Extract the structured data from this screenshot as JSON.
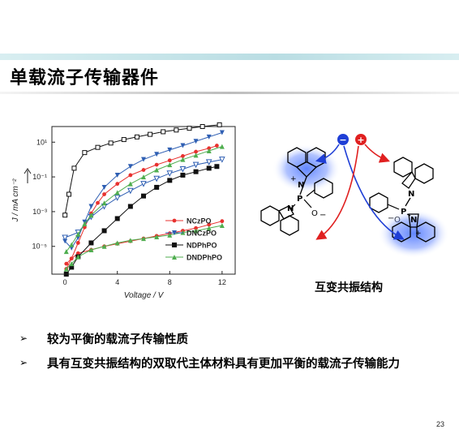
{
  "slide": {
    "title": "单载流子传输器件",
    "page_number": "23",
    "caption": "互变共振结构",
    "bullets": [
      "较为平衡的载流子传输性质",
      "具有互变共振结构的双取代主体材料具有更加平衡的载流子传输能力"
    ],
    "bullet_symbol": "➢"
  },
  "chemistry": {
    "atom_labels": [
      "N",
      "P",
      "O",
      "N",
      "P",
      "O",
      "N",
      "N"
    ],
    "charges": [
      "+",
      "−",
      "−",
      "+"
    ],
    "electron_symbol": "−",
    "hole_symbol": "+",
    "colors": {
      "electron": "#1f3fd6",
      "hole": "#e02020",
      "highlight": "#3f6bff"
    }
  },
  "chart_data": {
    "type": "line",
    "xlabel": "Voltage / V",
    "ylabel": "J / mA cm⁻²",
    "xlim": [
      -1,
      13
    ],
    "ylim": [
      -6.6,
      1.9
    ],
    "yscale": "log10",
    "x_ticks": [
      "0",
      "4",
      "8",
      "12"
    ],
    "y_ticks": [
      "10¹",
      "10⁻¹",
      "10⁻³",
      "10⁻⁵"
    ],
    "legend_position": "lower-right",
    "series": [
      {
        "name": "NCzPO",
        "color": "#e8312f",
        "marker": "circle",
        "curves": [
          {
            "x": [
              0.1,
              0.5,
              1.0,
              1.5,
              2.0,
              2.5,
              3.0,
              4.0,
              5.0,
              6.0,
              7.0,
              8.0,
              9.0,
              10.0,
              11.0,
              11.6
            ],
            "logy": [
              -6.3,
              -5.7,
              -4.8,
              -3.9,
              -3.1,
              -2.5,
              -2.0,
              -1.4,
              -0.9,
              -0.6,
              -0.3,
              -0.05,
              0.2,
              0.45,
              0.65,
              0.8
            ]
          },
          {
            "x": [
              0.1,
              0.5,
              1.0,
              2.0,
              3.0,
              4.0,
              5.0,
              6.0,
              7.0,
              8.0,
              9.0,
              10.0,
              11.0,
              12.0
            ],
            "logy": [
              -6.0,
              -5.7,
              -5.4,
              -5.2,
              -5.0,
              -4.85,
              -4.7,
              -4.55,
              -4.4,
              -4.25,
              -4.1,
              -3.95,
              -3.75,
              -3.55
            ]
          }
        ]
      },
      {
        "name": "DNCzPO",
        "color": "#2f5fb3",
        "marker": "triangle-down",
        "curves": [
          {
            "x": [
              0.0,
              0.5,
              1.0,
              1.5,
              2.0,
              3.0,
              4.0,
              5.0,
              6.0,
              7.0,
              8.0,
              9.0,
              10.0,
              11.0,
              12.0
            ],
            "logy": [
              -4.7,
              -5.1,
              -4.5,
              -3.6,
              -2.7,
              -1.6,
              -0.9,
              -0.4,
              0.0,
              0.3,
              0.55,
              0.8,
              1.05,
              1.3,
              1.55
            ]
          },
          {
            "x": [
              0.0,
              1.0,
              2.0,
              3.0,
              4.0,
              5.0,
              6.0,
              7.0,
              8.0,
              9.0,
              10.0,
              11.0,
              12.0
            ],
            "logy": [
              -4.5,
              -4.2,
              -3.3,
              -2.7,
              -2.2,
              -1.8,
              -1.4,
              -1.1,
              -0.8,
              -0.55,
              -0.3,
              -0.15,
              0.0
            ]
          }
        ]
      },
      {
        "name": "NDPhPO",
        "color": "#111111",
        "marker": "square",
        "curves": [
          {
            "x": [
              0.0,
              0.3,
              0.7,
              1.5,
              2.5,
              3.5,
              4.5,
              5.5,
              6.5,
              7.5,
              8.5,
              9.5,
              10.5,
              11.8
            ],
            "logy": [
              -3.2,
              -2.0,
              -0.5,
              0.4,
              0.7,
              0.95,
              1.15,
              1.3,
              1.45,
              1.6,
              1.7,
              1.8,
              1.9,
              2.0
            ]
          },
          {
            "x": [
              0.1,
              0.5,
              1.0,
              2.0,
              3.0,
              4.0,
              5.0,
              6.0,
              7.0,
              8.0,
              9.0,
              10.0,
              11.0,
              11.6
            ],
            "logy": [
              -6.6,
              -6.2,
              -5.6,
              -4.8,
              -4.1,
              -3.4,
              -2.7,
              -2.1,
              -1.6,
              -1.2,
              -0.9,
              -0.7,
              -0.5,
              -0.4
            ]
          }
        ]
      },
      {
        "name": "DNDPhPO",
        "color": "#4fae4f",
        "marker": "triangle-up",
        "curves": [
          {
            "x": [
              0.1,
              0.5,
              1.0,
              1.5,
              2.0,
              3.0,
              4.0,
              5.0,
              6.0,
              7.0,
              8.0,
              9.0,
              10.0,
              11.0,
              12.0
            ],
            "logy": [
              -5.3,
              -4.9,
              -4.3,
              -3.7,
              -3.2,
              -2.5,
              -1.9,
              -1.4,
              -1.0,
              -0.6,
              -0.3,
              0.0,
              0.25,
              0.5,
              0.75
            ]
          },
          {
            "x": [
              0.1,
              0.5,
              1.0,
              2.0,
              3.0,
              4.0,
              5.0,
              6.0,
              7.0,
              8.0,
              9.0,
              10.0,
              11.0,
              12.0
            ],
            "logy": [
              -6.3,
              -6.0,
              -5.6,
              -5.2,
              -5.0,
              -4.8,
              -4.65,
              -4.55,
              -4.45,
              -4.35,
              -4.2,
              -4.1,
              -3.95,
              -3.8
            ]
          }
        ]
      }
    ]
  }
}
